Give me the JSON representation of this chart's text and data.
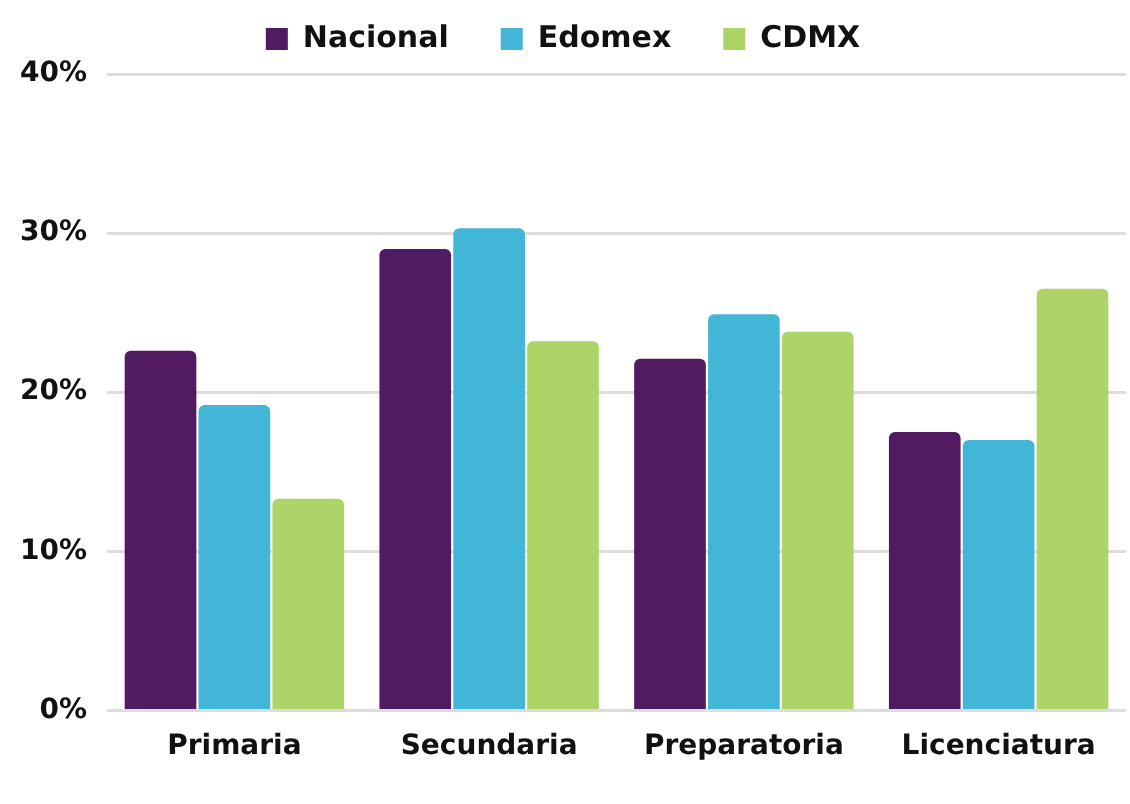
{
  "chart_data": {
    "type": "bar",
    "categories": [
      "Primaria",
      "Secundaria",
      "Preparatoria",
      "Licenciatura"
    ],
    "series": [
      {
        "name": "Nacional",
        "color": "#521a62",
        "values": [
          22.6,
          29.0,
          22.1,
          17.5
        ]
      },
      {
        "name": "Edomex",
        "color": "#42b6d6",
        "values": [
          19.2,
          30.3,
          24.9,
          17.0
        ]
      },
      {
        "name": "CDMX",
        "color": "#add467",
        "values": [
          13.3,
          23.2,
          23.8,
          26.5
        ]
      }
    ],
    "ylim": [
      0,
      40
    ],
    "yticks": [
      {
        "value": 0,
        "label": "0%"
      },
      {
        "value": 10,
        "label": "10%"
      },
      {
        "value": 20,
        "label": "20%"
      },
      {
        "value": 30,
        "label": "30%"
      },
      {
        "value": 40,
        "label": "40%"
      }
    ],
    "grid": "y",
    "legend": "top"
  }
}
